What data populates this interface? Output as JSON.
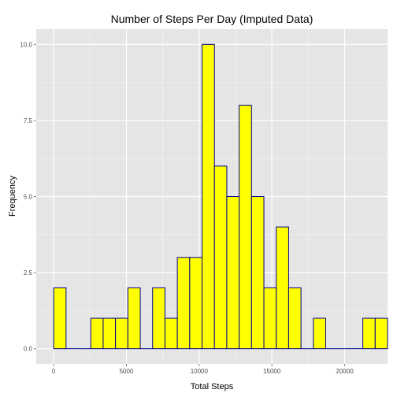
{
  "chart_data": {
    "type": "bar",
    "title": "Number of Steps Per Day (Imputed Data)",
    "xlabel": "Total Steps",
    "ylabel": "Frequency",
    "binwidth": 850,
    "xlim": [
      -1200,
      22950
    ],
    "ylim": [
      -0.5,
      10.5
    ],
    "xticks": [
      0,
      5000,
      10000,
      15000,
      20000
    ],
    "xtick_labels": [
      "0",
      "5000",
      "10000",
      "15000",
      "20000"
    ],
    "yticks": [
      0,
      2.5,
      5,
      7.5,
      10
    ],
    "ytick_labels": [
      "0.0",
      "2.5",
      "5.0",
      "7.5",
      "10.0"
    ],
    "grid": true,
    "fill_color": "#ffff00",
    "outline_color": "#00008b",
    "background_color": "#e5e5e5",
    "grid_color": "#ffffff",
    "bins": [
      {
        "center": 425,
        "count": 2
      },
      {
        "center": 1275,
        "count": 0
      },
      {
        "center": 2125,
        "count": 0
      },
      {
        "center": 2975,
        "count": 1
      },
      {
        "center": 3825,
        "count": 1
      },
      {
        "center": 4675,
        "count": 1
      },
      {
        "center": 5525,
        "count": 2
      },
      {
        "center": 6375,
        "count": 0
      },
      {
        "center": 7225,
        "count": 2
      },
      {
        "center": 8075,
        "count": 1
      },
      {
        "center": 8925,
        "count": 3
      },
      {
        "center": 9775,
        "count": 3
      },
      {
        "center": 10625,
        "count": 10
      },
      {
        "center": 11475,
        "count": 6
      },
      {
        "center": 12325,
        "count": 5
      },
      {
        "center": 13175,
        "count": 8
      },
      {
        "center": 14025,
        "count": 5
      },
      {
        "center": 14875,
        "count": 2
      },
      {
        "center": 15725,
        "count": 4
      },
      {
        "center": 16575,
        "count": 2
      },
      {
        "center": 17425,
        "count": 0
      },
      {
        "center": 18275,
        "count": 1
      },
      {
        "center": 19125,
        "count": 0
      },
      {
        "center": 19975,
        "count": 0
      },
      {
        "center": 20825,
        "count": 0
      },
      {
        "center": 21675,
        "count": 1
      },
      {
        "center": 22525,
        "count": 1
      }
    ]
  }
}
